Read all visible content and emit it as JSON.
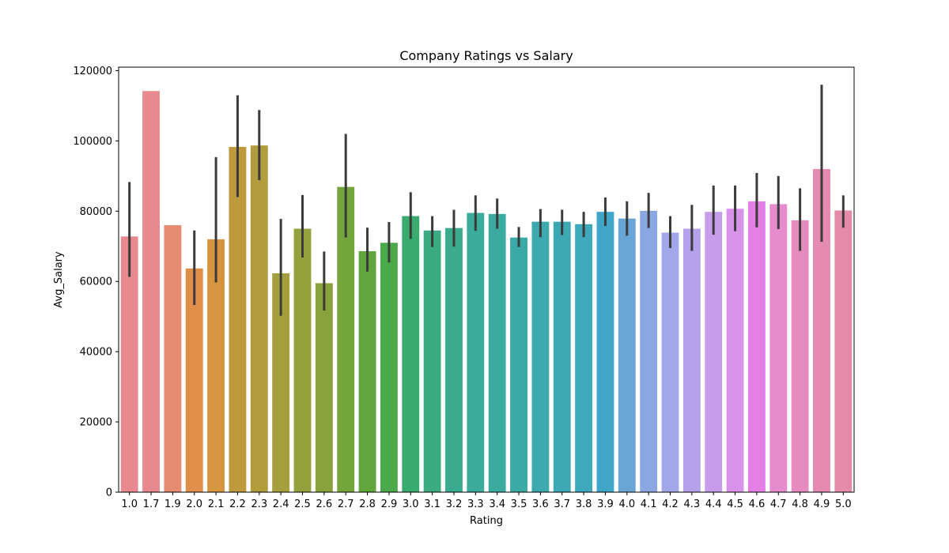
{
  "chart_data": {
    "type": "bar",
    "title": "Company Ratings vs Salary",
    "xlabel": "Rating",
    "ylabel": "Avg_Salary",
    "ylim": [
      0,
      121000
    ],
    "yticks": [
      0,
      20000,
      40000,
      60000,
      80000,
      100000,
      120000
    ],
    "grid": false,
    "legend": "none",
    "categories": [
      "1.0",
      "1.7",
      "1.9",
      "2.0",
      "2.1",
      "2.2",
      "2.3",
      "2.4",
      "2.5",
      "2.6",
      "2.7",
      "2.8",
      "2.9",
      "3.0",
      "3.1",
      "3.2",
      "3.3",
      "3.4",
      "3.5",
      "3.6",
      "3.7",
      "3.8",
      "3.9",
      "4.0",
      "4.1",
      "4.2",
      "4.3",
      "4.4",
      "4.5",
      "4.6",
      "4.7",
      "4.8",
      "4.9",
      "5.0"
    ],
    "values": [
      72800,
      114200,
      76000,
      63700,
      72000,
      98300,
      98700,
      62300,
      75000,
      59500,
      86900,
      68600,
      71000,
      78600,
      74500,
      75200,
      79500,
      79200,
      72500,
      77000,
      77000,
      76300,
      79800,
      77900,
      80100,
      73900,
      75000,
      79800,
      80700,
      82800,
      82000,
      77400,
      92000,
      80200
    ],
    "error_low": [
      61300,
      114200,
      76000,
      53300,
      59700,
      84000,
      88800,
      50200,
      66800,
      51700,
      72500,
      62800,
      65400,
      72100,
      69800,
      69900,
      74400,
      75000,
      69800,
      72600,
      73200,
      72600,
      75800,
      73000,
      75200,
      69500,
      68700,
      73300,
      74300,
      75400,
      74900,
      68700,
      71300,
      75300
    ],
    "error_high": [
      88300,
      114200,
      76000,
      74500,
      95400,
      113000,
      108800,
      77800,
      84600,
      68500,
      102000,
      75300,
      76900,
      85400,
      78600,
      80400,
      84500,
      83600,
      75500,
      80600,
      80400,
      79800,
      83900,
      82800,
      85200,
      78600,
      81800,
      87300,
      87300,
      90900,
      90000,
      86500,
      116000,
      84500
    ],
    "colors": [
      "#e8898f",
      "#e8898f",
      "#e58b71",
      "#e08f4b",
      "#d6953e",
      "#bf9a3d",
      "#b29c3d",
      "#a39f3d",
      "#95a13d",
      "#8aa23d",
      "#74a53d",
      "#61a63d",
      "#4aa94a",
      "#3aab6e",
      "#3aab81",
      "#3aab8f",
      "#3bab9b",
      "#3bab9f",
      "#3baaa6",
      "#3ca9ae",
      "#3ca9b5",
      "#3ea8bd",
      "#3fa6c8",
      "#6aa5d8",
      "#8aa7e2",
      "#a1a7ea",
      "#b5a1ea",
      "#c79cea",
      "#d992ea",
      "#e37fe6",
      "#e58bce",
      "#e58bbd",
      "#e58bb2",
      "#e58ba9"
    ],
    "error_color": "#3b3b3b"
  }
}
